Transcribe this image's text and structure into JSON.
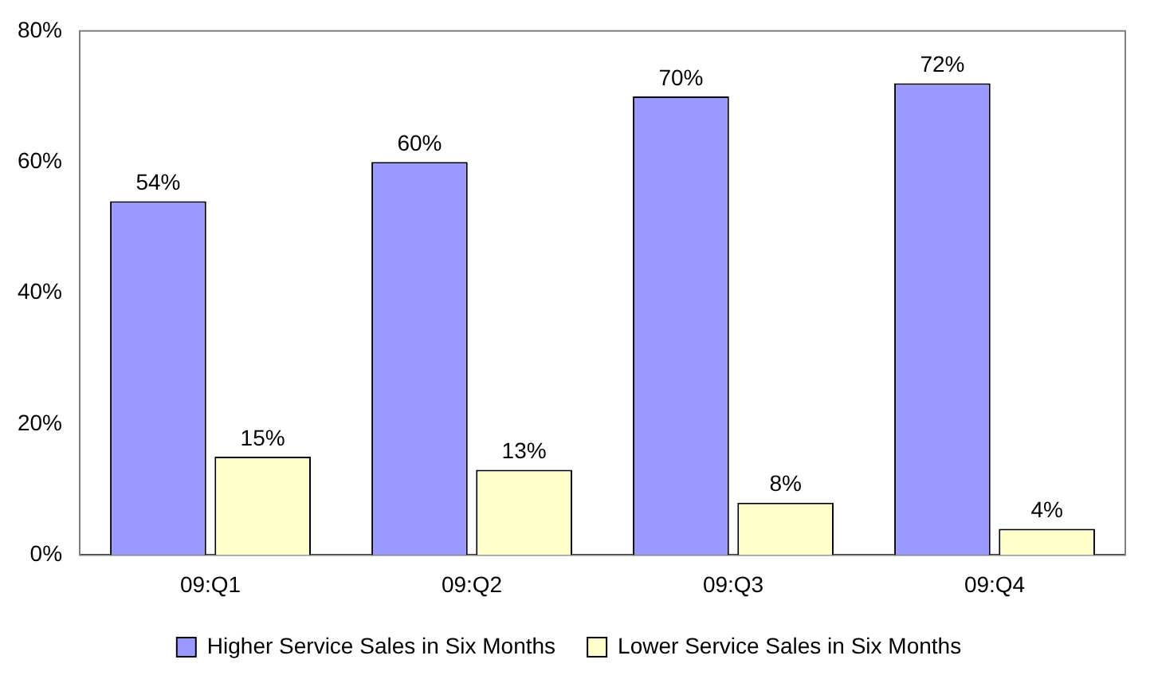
{
  "chart_data": {
    "type": "bar",
    "categories": [
      "09:Q1",
      "09:Q2",
      "09:Q3",
      "09:Q4"
    ],
    "series": [
      {
        "name": "Higher Service Sales in Six Months",
        "color": "#9999ff",
        "values": [
          54,
          60,
          70,
          72
        ],
        "value_labels": [
          "54%",
          "60%",
          "70%",
          "72%"
        ]
      },
      {
        "name": "Lower Service Sales in Six Months",
        "color": "#ffffcc",
        "values": [
          15,
          13,
          8,
          4
        ],
        "value_labels": [
          "15%",
          "13%",
          "8%",
          "4%"
        ]
      }
    ],
    "ylim": [
      0,
      80
    ],
    "yticks": [
      {
        "value": 0,
        "label": "0%"
      },
      {
        "value": 20,
        "label": "20%"
      },
      {
        "value": 40,
        "label": "40%"
      },
      {
        "value": 60,
        "label": "60%"
      },
      {
        "value": 80,
        "label": "80%"
      }
    ],
    "grid": false,
    "legend": "bottom"
  }
}
